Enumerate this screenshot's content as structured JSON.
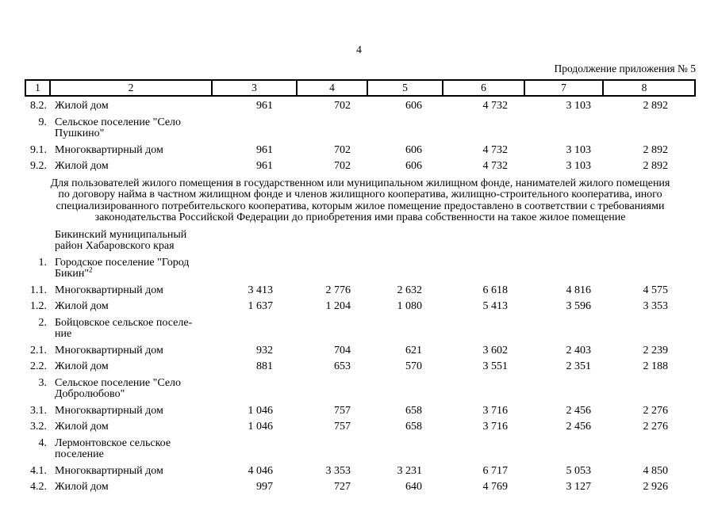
{
  "page_number": "4",
  "continuation_label": "Продолжение приложения № 5",
  "table": {
    "columns": [
      "1",
      "2",
      "3",
      "4",
      "5",
      "6",
      "7",
      "8"
    ],
    "body_top": [
      {
        "num": "8.2.",
        "name": "Жилой дом",
        "values": [
          "961",
          "702",
          "606",
          "4 732",
          "3 103",
          "2 892"
        ]
      },
      {
        "num": "9.",
        "name": "Сельское поселение \"Село\nПушкино\"",
        "values": []
      },
      {
        "num": "9.1.",
        "name": "Многоквартирный дом",
        "values": [
          "961",
          "702",
          "606",
          "4 732",
          "3 103",
          "2 892"
        ]
      },
      {
        "num": "9.2.",
        "name": "Жилой дом",
        "values": [
          "961",
          "702",
          "606",
          "4 732",
          "3 103",
          "2 892"
        ]
      }
    ],
    "note": "Для пользователей жилого помещения в государственном или муниципальном жилищном фонде, нанимателей жилого помещения\nпо договору найма в частном жилищном фонде и членов жилищного кооператива, жилищно-строительного кооператива, иного\nспециализированного потребительского кооператива, которым жилое помещение предоставлено в соответствии с требованиями\nзаконодательства Российской Федерации до приобретения ими права собственности на такое жилое помещение",
    "body_bottom": [
      {
        "num": "",
        "name": "Бикинский муниципальный\nрайон Хабаровского края",
        "values": []
      },
      {
        "num": "1.",
        "name": "Городское поселение \"Город\nБикин\"",
        "name_sup": "2",
        "values": []
      },
      {
        "num": "1.1.",
        "name": "Многоквартирный дом",
        "values": [
          "3 413",
          "2 776",
          "2 632",
          "6 618",
          "4 816",
          "4 575"
        ]
      },
      {
        "num": "1.2.",
        "name": "Жилой дом",
        "values": [
          "1 637",
          "1 204",
          "1 080",
          "5 413",
          "3 596",
          "3 353"
        ]
      },
      {
        "num": "2.",
        "name": "Бойцовское сельское поселе-\nние",
        "values": []
      },
      {
        "num": "2.1.",
        "name": "Многоквартирный дом",
        "values": [
          "932",
          "704",
          "621",
          "3 602",
          "2 403",
          "2 239"
        ]
      },
      {
        "num": "2.2.",
        "name": "Жилой дом",
        "values": [
          "881",
          "653",
          "570",
          "3 551",
          "2 351",
          "2 188"
        ]
      },
      {
        "num": "3.",
        "name": "Сельское поселение \"Село\nДобролюбово\"",
        "values": []
      },
      {
        "num": "3.1.",
        "name": "Многоквартирный дом",
        "values": [
          "1 046",
          "757",
          "658",
          "3 716",
          "2 456",
          "2 276"
        ]
      },
      {
        "num": "3.2.",
        "name": "Жилой дом",
        "values": [
          "1 046",
          "757",
          "658",
          "3 716",
          "2 456",
          "2 276"
        ]
      },
      {
        "num": "4.",
        "name": "Лермонтовское сельское\nпоселение",
        "values": []
      },
      {
        "num": "4.1.",
        "name": "Многоквартирный дом",
        "values": [
          "4 046",
          "3 353",
          "3 231",
          "6 717",
          "5 053",
          "4 850"
        ]
      },
      {
        "num": "4.2.",
        "name": "Жилой дом",
        "values": [
          "997",
          "727",
          "640",
          "4 769",
          "3 127",
          "2 926"
        ]
      }
    ]
  }
}
